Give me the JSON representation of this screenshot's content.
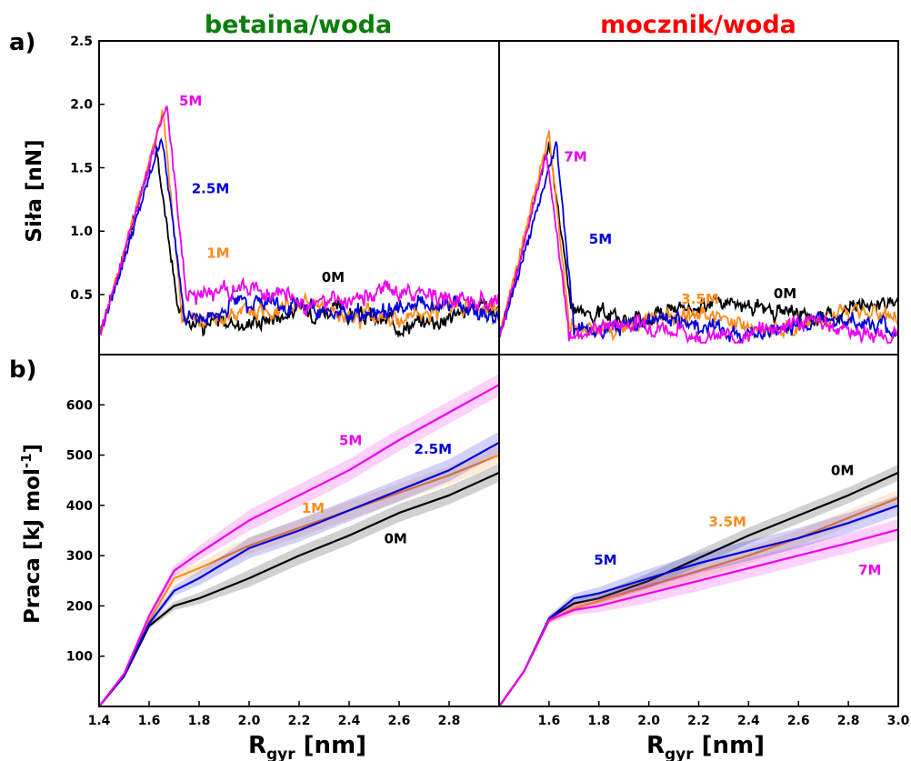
{
  "figure": {
    "title_left": "betaina/woda",
    "title_right": "mocznik/woda",
    "panel_a": "a)",
    "panel_b": "b)",
    "ylabel_force": "Siła [nN]",
    "ylabel_work_main": "Praca [kJ mol",
    "ylabel_work_sup": "-1",
    "ylabel_work_end": "]",
    "xlabel_main": "R",
    "xlabel_sub": "gyr",
    "xlabel_unit": " [nm]",
    "colors": {
      "title_left": "#0a7d0a",
      "title_right": "#ff0000",
      "black": "#000000",
      "blue": "#0000dd",
      "orange": "#ff8c1a",
      "magenta": "#ee00ee"
    }
  },
  "chart_data": [
    {
      "id": "force-betaine",
      "type": "line",
      "title": "betaina/woda",
      "ylabel": "Siła [nN]",
      "xlim": [
        1.4,
        3.0
      ],
      "ylim": [
        0.12,
        2.5
      ],
      "yticks": [
        "0.5",
        "1.0",
        "1.5",
        "2.0",
        "2.5"
      ],
      "series": [
        {
          "name": "0M",
          "color": "#000000",
          "peak_x": 1.625,
          "peak_y": 1.7,
          "drop_x": 1.72,
          "plateau": 0.33,
          "noise": 0.09
        },
        {
          "name": "1M",
          "color": "#ff8c1a",
          "peak_x": 1.655,
          "peak_y": 1.95,
          "drop_x": 1.73,
          "plateau": 0.36,
          "noise": 0.09
        },
        {
          "name": "2.5M",
          "color": "#0000dd",
          "peak_x": 1.65,
          "peak_y": 1.75,
          "drop_x": 1.74,
          "plateau": 0.38,
          "noise": 0.09
        },
        {
          "name": "5M",
          "color": "#ee00ee",
          "peak_x": 1.67,
          "peak_y": 2.02,
          "drop_x": 1.75,
          "plateau": 0.48,
          "noise": 0.09
        }
      ],
      "annotations": [
        {
          "text": "5M",
          "x": 1.72,
          "y": 1.99,
          "color": "#ee00ee"
        },
        {
          "text": "2.5M",
          "x": 1.77,
          "y": 1.3,
          "color": "#0000dd"
        },
        {
          "text": "1M",
          "x": 1.83,
          "y": 0.79,
          "color": "#ff8c1a"
        },
        {
          "text": "0M",
          "x": 2.29,
          "y": 0.6,
          "color": "#000000"
        }
      ]
    },
    {
      "id": "force-urea",
      "type": "line",
      "title": "mocznik/woda",
      "xlim": [
        1.4,
        3.0
      ],
      "ylim": [
        0.12,
        2.5
      ],
      "series": [
        {
          "name": "0M",
          "color": "#000000",
          "peak_x": 1.6,
          "peak_y": 1.7,
          "drop_x": 1.69,
          "plateau": 0.38,
          "noise": 0.08
        },
        {
          "name": "3.5M",
          "color": "#ff8c1a",
          "peak_x": 1.6,
          "peak_y": 1.78,
          "drop_x": 1.68,
          "plateau": 0.28,
          "noise": 0.08
        },
        {
          "name": "5M",
          "color": "#0000dd",
          "peak_x": 1.63,
          "peak_y": 1.7,
          "drop_x": 1.7,
          "plateau": 0.25,
          "noise": 0.08
        },
        {
          "name": "7M",
          "color": "#ee00ee",
          "peak_x": 1.59,
          "peak_y": 1.6,
          "drop_x": 1.68,
          "plateau": 0.22,
          "noise": 0.08
        }
      ],
      "annotations": [
        {
          "text": "7M",
          "x": 1.66,
          "y": 1.55,
          "color": "#ee00ee"
        },
        {
          "text": "5M",
          "x": 1.76,
          "y": 0.9,
          "color": "#0000dd"
        },
        {
          "text": "3.5M",
          "x": 2.13,
          "y": 0.43,
          "color": "#ff8c1a"
        },
        {
          "text": "0M",
          "x": 2.5,
          "y": 0.47,
          "color": "#000000"
        }
      ]
    },
    {
      "id": "work-betaine",
      "type": "area",
      "ylabel": "Praca [kJ mol-1]",
      "xlabel": "Rgyr [nm]",
      "xlim": [
        1.4,
        3.0
      ],
      "ylim": [
        0,
        700
      ],
      "xticks": [
        "1.4",
        "1.6",
        "1.8",
        "2.0",
        "2.2",
        "2.4",
        "2.6",
        "2.8"
      ],
      "yticks": [
        "100",
        "200",
        "300",
        "400",
        "500",
        "600"
      ],
      "series": [
        {
          "name": "0M",
          "color": "#000000",
          "x": [
            1.4,
            1.5,
            1.6,
            1.7,
            1.8,
            2.0,
            2.2,
            2.4,
            2.6,
            2.8,
            3.0
          ],
          "y": [
            0,
            60,
            160,
            200,
            215,
            255,
            300,
            340,
            385,
            420,
            465
          ],
          "band": 18
        },
        {
          "name": "1M",
          "color": "#ff8c1a",
          "x": [
            1.4,
            1.5,
            1.6,
            1.7,
            1.8,
            2.0,
            2.2,
            2.4,
            2.6,
            2.8,
            3.0
          ],
          "y": [
            0,
            62,
            170,
            255,
            275,
            320,
            355,
            390,
            425,
            460,
            500
          ],
          "band": 18
        },
        {
          "name": "2.5M",
          "color": "#0000dd",
          "x": [
            1.4,
            1.5,
            1.6,
            1.7,
            1.8,
            2.0,
            2.2,
            2.4,
            2.6,
            2.8,
            3.0
          ],
          "y": [
            0,
            62,
            165,
            230,
            255,
            315,
            350,
            390,
            430,
            470,
            525
          ],
          "band": 22
        },
        {
          "name": "5M",
          "color": "#ee00ee",
          "x": [
            1.4,
            1.5,
            1.6,
            1.7,
            1.8,
            2.0,
            2.2,
            2.4,
            2.6,
            2.8,
            3.0
          ],
          "y": [
            0,
            65,
            180,
            270,
            305,
            370,
            420,
            470,
            530,
            585,
            640
          ],
          "band": 22
        }
      ],
      "annotations": [
        {
          "text": "5M",
          "x": 2.36,
          "y": 520,
          "color": "#ee00ee"
        },
        {
          "text": "2.5M",
          "x": 2.66,
          "y": 503,
          "color": "#0000dd"
        },
        {
          "text": "1M",
          "x": 2.21,
          "y": 385,
          "color": "#ff8c1a"
        },
        {
          "text": "0M",
          "x": 2.54,
          "y": 325,
          "color": "#000000"
        }
      ]
    },
    {
      "id": "work-urea",
      "type": "area",
      "xlabel": "Rgyr [nm]",
      "xlim": [
        1.4,
        3.0
      ],
      "ylim": [
        0,
        700
      ],
      "xticks": [
        "1.6",
        "1.8",
        "2.0",
        "2.2",
        "2.4",
        "2.6",
        "2.8",
        "3.0"
      ],
      "series": [
        {
          "name": "0M",
          "color": "#000000",
          "x": [
            1.4,
            1.5,
            1.6,
            1.7,
            1.8,
            2.0,
            2.2,
            2.4,
            2.6,
            2.8,
            3.0
          ],
          "y": [
            0,
            70,
            175,
            205,
            215,
            250,
            295,
            340,
            380,
            420,
            465
          ],
          "band": 16
        },
        {
          "name": "3.5M",
          "color": "#ff8c1a",
          "x": [
            1.4,
            1.5,
            1.6,
            1.7,
            1.8,
            2.0,
            2.2,
            2.4,
            2.6,
            2.8,
            3.0
          ],
          "y": [
            0,
            70,
            170,
            195,
            210,
            240,
            270,
            300,
            335,
            375,
            415
          ],
          "band": 16
        },
        {
          "name": "5M",
          "color": "#0000dd",
          "x": [
            1.4,
            1.5,
            1.6,
            1.7,
            1.8,
            2.0,
            2.2,
            2.4,
            2.6,
            2.8,
            3.0
          ],
          "y": [
            0,
            70,
            175,
            215,
            225,
            255,
            285,
            310,
            335,
            365,
            400
          ],
          "band": 20
        },
        {
          "name": "7M",
          "color": "#ee00ee",
          "x": [
            1.4,
            1.5,
            1.6,
            1.7,
            1.8,
            2.0,
            2.2,
            2.4,
            2.6,
            2.8,
            3.0
          ],
          "y": [
            0,
            70,
            172,
            192,
            200,
            225,
            250,
            275,
            300,
            325,
            352
          ],
          "band": 20
        }
      ],
      "annotations": [
        {
          "text": "0M",
          "x": 2.73,
          "y": 460,
          "color": "#000000"
        },
        {
          "text": "3.5M",
          "x": 2.24,
          "y": 358,
          "color": "#ff8c1a"
        },
        {
          "text": "5M",
          "x": 1.78,
          "y": 282,
          "color": "#0000dd"
        },
        {
          "text": "7M",
          "x": 2.84,
          "y": 262,
          "color": "#ee00ee"
        }
      ]
    }
  ]
}
